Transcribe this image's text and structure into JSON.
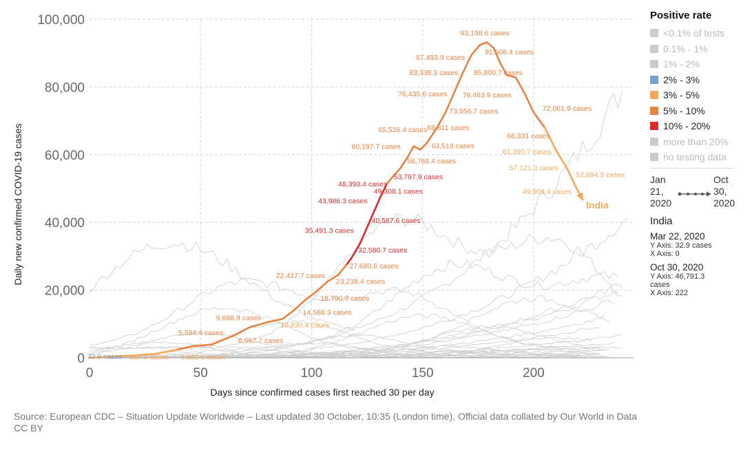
{
  "chart_data": {
    "type": "line",
    "title": "",
    "xlabel": "Days since confirmed cases first reached 30 per day",
    "ylabel": "Daily new confirmed COVID-19 cases",
    "xlim": [
      0,
      245
    ],
    "ylim": [
      0,
      100000
    ],
    "x_ticks": [
      0,
      50,
      100,
      150,
      200
    ],
    "x_tick_labels": [
      "0",
      "50",
      "100",
      "150",
      "200"
    ],
    "y_ticks": [
      0,
      20000,
      40000,
      60000,
      80000,
      100000
    ],
    "y_tick_labels": [
      "0",
      "20,000",
      "40,000",
      "60,000",
      "80,000",
      "100,000"
    ],
    "grid": true,
    "series": [
      {
        "name": "India",
        "highlighted": true,
        "points": [
          {
            "x": 0,
            "y": 32.9,
            "rate": "2% - 3%"
          },
          {
            "x": 18,
            "y": 587.3,
            "rate": "3% - 5%"
          },
          {
            "x": 30,
            "y": 1200,
            "rate": "3% - 5%"
          },
          {
            "x": 40,
            "y": 2500,
            "rate": "3% - 5%"
          },
          {
            "x": 47,
            "y": 3500,
            "rate": "5% - 10%"
          },
          {
            "x": 55,
            "y": 3900,
            "rate": "5% - 10%"
          },
          {
            "x": 65,
            "y": 6567.7,
            "rate": "5% - 10%"
          },
          {
            "x": 72,
            "y": 9000,
            "rate": "5% - 10%"
          },
          {
            "x": 80,
            "y": 10500,
            "rate": "5% - 10%"
          },
          {
            "x": 87,
            "y": 11500,
            "rate": "5% - 10%"
          },
          {
            "x": 92,
            "y": 14000,
            "rate": "5% - 10%"
          },
          {
            "x": 97,
            "y": 17000,
            "rate": "5% - 10%"
          },
          {
            "x": 102,
            "y": 19500,
            "rate": "5% - 10%"
          },
          {
            "x": 107,
            "y": 22417.7,
            "rate": "5% - 10%"
          },
          {
            "x": 112,
            "y": 24500,
            "rate": "5% - 10%"
          },
          {
            "x": 116,
            "y": 27680.6,
            "rate": "5% - 10%"
          },
          {
            "x": 118,
            "y": 29500,
            "rate": "10% - 20%"
          },
          {
            "x": 122,
            "y": 34000,
            "rate": "10% - 20%"
          },
          {
            "x": 125,
            "y": 38500,
            "rate": "10% - 20%"
          },
          {
            "x": 128,
            "y": 43000,
            "rate": "10% - 20%"
          },
          {
            "x": 131,
            "y": 47500,
            "rate": "10% - 20%"
          },
          {
            "x": 134,
            "y": 51500,
            "rate": "10% - 20%"
          },
          {
            "x": 137,
            "y": 53797.9,
            "rate": "5% - 10%"
          },
          {
            "x": 140,
            "y": 56000,
            "rate": "5% - 10%"
          },
          {
            "x": 143,
            "y": 59000,
            "rate": "5% - 10%"
          },
          {
            "x": 146,
            "y": 62500,
            "rate": "5% - 10%"
          },
          {
            "x": 149,
            "y": 61500,
            "rate": "5% - 10%"
          },
          {
            "x": 152,
            "y": 63519,
            "rate": "5% - 10%"
          },
          {
            "x": 156,
            "y": 67500,
            "rate": "5% - 10%"
          },
          {
            "x": 160,
            "y": 72000,
            "rate": "5% - 10%"
          },
          {
            "x": 164,
            "y": 78000,
            "rate": "5% - 10%"
          },
          {
            "x": 168,
            "y": 84000,
            "rate": "5% - 10%"
          },
          {
            "x": 172,
            "y": 89500,
            "rate": "5% - 10%"
          },
          {
            "x": 176,
            "y": 92500,
            "rate": "5% - 10%"
          },
          {
            "x": 179,
            "y": 93198.6,
            "rate": "5% - 10%"
          },
          {
            "x": 182,
            "y": 91506.4,
            "rate": "5% - 10%"
          },
          {
            "x": 185,
            "y": 87000,
            "rate": "5% - 10%"
          },
          {
            "x": 188,
            "y": 83500,
            "rate": "5% - 10%"
          },
          {
            "x": 192,
            "y": 82800,
            "rate": "5% - 10%"
          },
          {
            "x": 196,
            "y": 78000,
            "rate": "5% - 10%"
          },
          {
            "x": 200,
            "y": 72500,
            "rate": "5% - 10%"
          },
          {
            "x": 205,
            "y": 68000,
            "rate": "5% - 10%"
          },
          {
            "x": 210,
            "y": 61390.7,
            "rate": "3% - 5%"
          },
          {
            "x": 215,
            "y": 56000,
            "rate": "3% - 5%"
          },
          {
            "x": 219,
            "y": 50500,
            "rate": "3% - 5%"
          },
          {
            "x": 222,
            "y": 46791.3,
            "rate": "3% - 5%"
          }
        ]
      }
    ],
    "annotations": [
      {
        "text": "93,198.6 cases",
        "x": 167,
        "y": 95200,
        "rate": "5% - 10%"
      },
      {
        "text": "91,506.4 cases",
        "x": 178,
        "y": 89600,
        "rate": "5% - 10%"
      },
      {
        "text": "87,493.9 cases",
        "x": 147,
        "y": 88000,
        "rate": "5% - 10%"
      },
      {
        "text": "85,800.7 cases",
        "x": 173,
        "y": 83500,
        "rate": "5% - 10%"
      },
      {
        "text": "83,338.3 cases",
        "x": 144,
        "y": 83500,
        "rate": "5% - 10%"
      },
      {
        "text": "78,463.9 cases",
        "x": 168,
        "y": 76900,
        "rate": "5% - 10%"
      },
      {
        "text": "76,435.6 cases",
        "x": 139,
        "y": 77200,
        "rate": "5% - 10%"
      },
      {
        "text": "73,556.7 cases",
        "x": 162,
        "y": 72200,
        "rate": "5% - 10%"
      },
      {
        "text": "72,061.9 cases",
        "x": 204,
        "y": 73000,
        "rate": "5% - 10%"
      },
      {
        "text": "68,811 cases",
        "x": 152,
        "y": 67300,
        "rate": "5% - 10%"
      },
      {
        "text": "66,331 cases",
        "x": 188,
        "y": 64800,
        "rate": "5% - 10%"
      },
      {
        "text": "65,526.4 cases",
        "x": 130,
        "y": 66700,
        "rate": "5% - 10%"
      },
      {
        "text": "63,519 cases",
        "x": 154,
        "y": 61900,
        "rate": "5% - 10%"
      },
      {
        "text": "61,390.7 cases",
        "x": 186,
        "y": 60200,
        "rate": "3% - 5%"
      },
      {
        "text": "60,197.7 cases",
        "x": 118,
        "y": 61700,
        "rate": "5% - 10%"
      },
      {
        "text": "58,768.4 cases",
        "x": 143,
        "y": 57400,
        "rate": "5% - 10%"
      },
      {
        "text": "57,121.3 cases",
        "x": 189,
        "y": 55400,
        "rate": "3% - 5%"
      },
      {
        "text": "53,797.9 cases",
        "x": 137,
        "y": 52700,
        "rate": "10% - 20%"
      },
      {
        "text": "52,894.3 cases",
        "x": 219,
        "y": 53400,
        "rate": "3% - 5%"
      },
      {
        "text": "49,909.4 cases",
        "x": 195,
        "y": 48400,
        "rate": "3% - 5%"
      },
      {
        "text": "49,308.1 cases",
        "x": 128,
        "y": 48500,
        "rate": "10% - 20%"
      },
      {
        "text": "48,393.4 cases",
        "x": 112,
        "y": 50600,
        "rate": "10% - 20%"
      },
      {
        "text": "43,986.3 cases",
        "x": 103,
        "y": 45600,
        "rate": "10% - 20%"
      },
      {
        "text": "40,587.6 cases",
        "x": 127,
        "y": 39800,
        "rate": "10% - 20%"
      },
      {
        "text": "35,491.3 cases",
        "x": 97,
        "y": 36900,
        "rate": "10% - 20%"
      },
      {
        "text": "32,580.7 cases",
        "x": 121,
        "y": 31100,
        "rate": "10% - 20%"
      },
      {
        "text": "27,680.6 cases",
        "x": 117,
        "y": 26400,
        "rate": "5% - 10%"
      },
      {
        "text": "23,238.4 cases",
        "x": 111,
        "y": 21900,
        "rate": "5% - 10%"
      },
      {
        "text": "22,417.7 cases",
        "x": 84,
        "y": 23600,
        "rate": "5% - 10%"
      },
      {
        "text": "18,790.9 cases",
        "x": 104,
        "y": 16900,
        "rate": "5% - 10%"
      },
      {
        "text": "14,588.3 cases",
        "x": 96,
        "y": 12700,
        "rate": "5% - 10%"
      },
      {
        "text": "10,830.4 cases",
        "x": 86,
        "y": 8900,
        "rate": "3% - 5%"
      },
      {
        "text": "9,698.9 cases",
        "x": 57,
        "y": 11100,
        "rate": "5% - 10%"
      },
      {
        "text": "6,567.7 cases",
        "x": 67,
        "y": 4400,
        "rate": "5% - 10%"
      },
      {
        "text": "5,594.4 cases",
        "x": 40,
        "y": 6700,
        "rate": "5% - 10%"
      },
      {
        "text": "1,832.9 cases",
        "x": 41,
        "y": -500,
        "rate": "3% - 5%"
      },
      {
        "text": "587.3 cases",
        "x": 18,
        "y": -500,
        "rate": "3% - 5%"
      },
      {
        "text": "32.9 cases",
        "x": -1,
        "y": -300,
        "rate": "2% - 3%"
      }
    ],
    "highlight_label": "India",
    "legend_placement": "right"
  },
  "legend": {
    "title": "Positive rate",
    "items": [
      {
        "label": "<0.1% of tests",
        "color": "#cccccc",
        "active": false
      },
      {
        "label": "0.1% - 1%",
        "color": "#cccccc",
        "active": false
      },
      {
        "label": "1% - 2%",
        "color": "#cccccc",
        "active": false
      },
      {
        "label": "2% - 3%",
        "color": "#7a9dcf",
        "active": true
      },
      {
        "label": "3% - 5%",
        "color": "#f6a85a",
        "active": true
      },
      {
        "label": "5% - 10%",
        "color": "#e8823f",
        "active": true
      },
      {
        "label": "10% - 20%",
        "color": "#d92b2b",
        "active": true
      },
      {
        "label": "more than 20%",
        "color": "#cccccc",
        "active": false
      },
      {
        "label": "no testing data",
        "color": "#cccccc",
        "active": false
      }
    ]
  },
  "timeline": {
    "start_month_day": "Jan 21,",
    "start_year": "2020",
    "end_month_day": "Oct 30,",
    "end_year": "2020"
  },
  "info": {
    "country": "India",
    "start": {
      "date": "Mar 22, 2020",
      "y": "Y Axis: 32.9 cases",
      "x": "X Axis: 0"
    },
    "end": {
      "date": "Oct 30, 2020",
      "y": "Y Axis: 46,791.3",
      "y2": "cases",
      "x": "X Axis: 222"
    }
  },
  "footer": {
    "source": "Source: European CDC – Situation Update Worldwide – Last updated 30 October, 10:35 (London time), Official data collated by Our World in Data",
    "license": "CC BY"
  },
  "colors": {
    "2% - 3%": "#7a9dcf",
    "3% - 5%": "#f6a85a",
    "5% - 10%": "#e8823f",
    "10% - 20%": "#d92b2b",
    "background_lines": "#cfcfcf",
    "grid": "#d6d6d6"
  }
}
